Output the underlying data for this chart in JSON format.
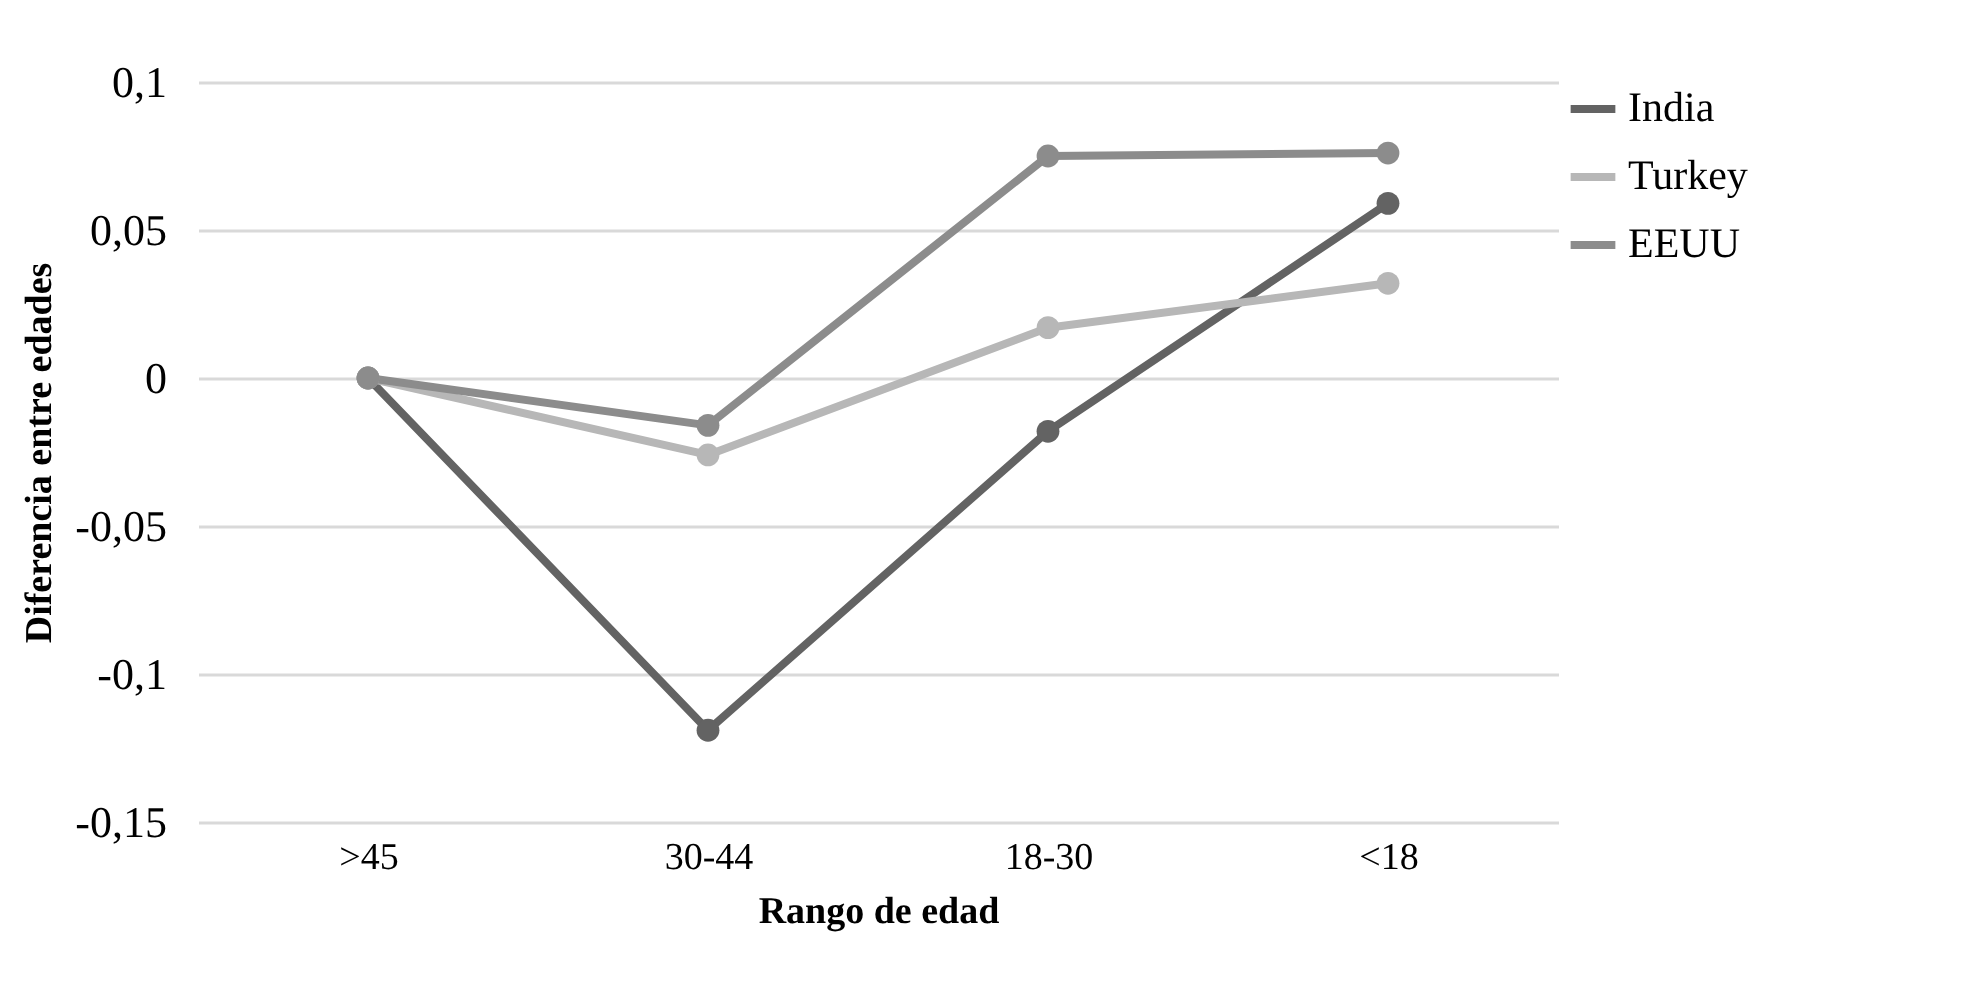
{
  "chart_data": {
    "type": "line",
    "xlabel": "Rango de edad",
    "ylabel": "Diferencia entre edades",
    "categories": [
      ">45",
      "30-44",
      "18-30",
      "<18"
    ],
    "series": [
      {
        "name": "India",
        "color": "#636363",
        "values": [
          0,
          -0.119,
          -0.018,
          0.059
        ]
      },
      {
        "name": "Turkey",
        "color": "#b7b7b7",
        "values": [
          0,
          -0.026,
          0.017,
          0.032
        ]
      },
      {
        "name": "EEUU",
        "color": "#8c8c8c",
        "values": [
          0,
          -0.016,
          0.075,
          0.076
        ]
      }
    ],
    "ylim": [
      -0.15,
      0.1
    ],
    "yticks": [
      {
        "value": -0.15,
        "label": "-0,15"
      },
      {
        "value": -0.1,
        "label": "-0,1"
      },
      {
        "value": -0.05,
        "label": "-0,05"
      },
      {
        "value": 0,
        "label": "0"
      },
      {
        "value": 0.05,
        "label": "0,05"
      },
      {
        "value": 0.1,
        "label": "0,1"
      }
    ],
    "grid": "y",
    "legend": "right",
    "marker": "circle",
    "line_style": "solid"
  }
}
